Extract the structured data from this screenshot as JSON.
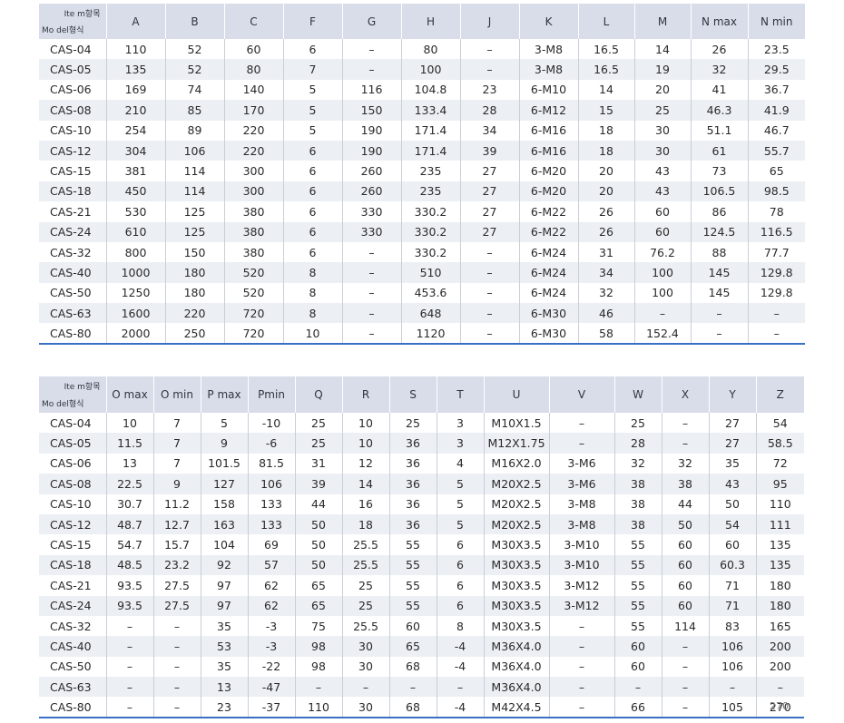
{
  "table1": {
    "corner_item": "Ite m항목",
    "corner_model": "Mo del형식",
    "columns": [
      "A",
      "B",
      "C",
      "F",
      "G",
      "H",
      "J",
      "K",
      "L",
      "M",
      "N max",
      "N min"
    ],
    "rows": [
      [
        "CAS-04",
        "110",
        "52",
        "60",
        "6",
        "–",
        "80",
        "–",
        "3-M8",
        "16.5",
        "14",
        "26",
        "23.5"
      ],
      [
        "CAS-05",
        "135",
        "52",
        "80",
        "7",
        "–",
        "100",
        "–",
        "3-M8",
        "16.5",
        "19",
        "32",
        "29.5"
      ],
      [
        "CAS-06",
        "169",
        "74",
        "140",
        "5",
        "116",
        "104.8",
        "23",
        "6-M10",
        "14",
        "20",
        "41",
        "36.7"
      ],
      [
        "CAS-08",
        "210",
        "85",
        "170",
        "5",
        "150",
        "133.4",
        "28",
        "6-M12",
        "15",
        "25",
        "46.3",
        "41.9"
      ],
      [
        "CAS-10",
        "254",
        "89",
        "220",
        "5",
        "190",
        "171.4",
        "34",
        "6-M16",
        "18",
        "30",
        "51.1",
        "46.7"
      ],
      [
        "CAS-12",
        "304",
        "106",
        "220",
        "6",
        "190",
        "171.4",
        "39",
        "6-M16",
        "18",
        "30",
        "61",
        "55.7"
      ],
      [
        "CAS-15",
        "381",
        "114",
        "300",
        "6",
        "260",
        "235",
        "27",
        "6-M20",
        "20",
        "43",
        "73",
        "65"
      ],
      [
        "CAS-18",
        "450",
        "114",
        "300",
        "6",
        "260",
        "235",
        "27",
        "6-M20",
        "20",
        "43",
        "106.5",
        "98.5"
      ],
      [
        "CAS-21",
        "530",
        "125",
        "380",
        "6",
        "330",
        "330.2",
        "27",
        "6-M22",
        "26",
        "60",
        "86",
        "78"
      ],
      [
        "CAS-24",
        "610",
        "125",
        "380",
        "6",
        "330",
        "330.2",
        "27",
        "6-M22",
        "26",
        "60",
        "124.5",
        "116.5"
      ],
      [
        "CAS-32",
        "800",
        "150",
        "380",
        "6",
        "–",
        "330.2",
        "–",
        "6-M24",
        "31",
        "76.2",
        "88",
        "77.7"
      ],
      [
        "CAS-40",
        "1000",
        "180",
        "520",
        "8",
        "–",
        "510",
        "–",
        "6-M24",
        "34",
        "100",
        "145",
        "129.8"
      ],
      [
        "CAS-50",
        "1250",
        "180",
        "520",
        "8",
        "–",
        "453.6",
        "–",
        "6-M24",
        "32",
        "100",
        "145",
        "129.8"
      ],
      [
        "CAS-63",
        "1600",
        "220",
        "720",
        "8",
        "–",
        "648",
        "–",
        "6-M30",
        "46",
        "–",
        "–",
        "–"
      ],
      [
        "CAS-80",
        "2000",
        "250",
        "720",
        "10",
        "–",
        "1120",
        "–",
        "6-M30",
        "58",
        "152.4",
        "–",
        "–"
      ]
    ]
  },
  "table2": {
    "corner_item": "Ite m항목",
    "corner_model": "Mo del형식",
    "columns": [
      "O max",
      "O min",
      "P max",
      "Pmin",
      "Q",
      "R",
      "S",
      "T",
      "U",
      "V",
      "W",
      "X",
      "Y",
      "Z"
    ],
    "rows": [
      [
        "CAS-04",
        "10",
        "7",
        "5",
        "-10",
        "25",
        "10",
        "25",
        "3",
        "M10X1.5",
        "–",
        "25",
        "–",
        "27",
        "54"
      ],
      [
        "CAS-05",
        "11.5",
        "7",
        "9",
        "-6",
        "25",
        "10",
        "36",
        "3",
        "M12X1.75",
        "–",
        "28",
        "–",
        "27",
        "58.5"
      ],
      [
        "CAS-06",
        "13",
        "7",
        "101.5",
        "81.5",
        "31",
        "12",
        "36",
        "4",
        "M16X2.0",
        "3-M6",
        "32",
        "32",
        "35",
        "72"
      ],
      [
        "CAS-08",
        "22.5",
        "9",
        "127",
        "106",
        "39",
        "14",
        "36",
        "5",
        "M20X2.5",
        "3-M6",
        "38",
        "38",
        "43",
        "95"
      ],
      [
        "CAS-10",
        "30.7",
        "11.2",
        "158",
        "133",
        "44",
        "16",
        "36",
        "5",
        "M20X2.5",
        "3-M8",
        "38",
        "44",
        "50",
        "110"
      ],
      [
        "CAS-12",
        "48.7",
        "12.7",
        "163",
        "133",
        "50",
        "18",
        "36",
        "5",
        "M20X2.5",
        "3-M8",
        "38",
        "50",
        "54",
        "111"
      ],
      [
        "CAS-15",
        "54.7",
        "15.7",
        "104",
        "69",
        "50",
        "25.5",
        "55",
        "6",
        "M30X3.5",
        "3-M10",
        "55",
        "60",
        "60",
        "135"
      ],
      [
        "CAS-18",
        "48.5",
        "23.2",
        "92",
        "57",
        "50",
        "25.5",
        "55",
        "6",
        "M30X3.5",
        "3-M10",
        "55",
        "60",
        "60.3",
        "135"
      ],
      [
        "CAS-21",
        "93.5",
        "27.5",
        "97",
        "62",
        "65",
        "25",
        "55",
        "6",
        "M30X3.5",
        "3-M12",
        "55",
        "60",
        "71",
        "180"
      ],
      [
        "CAS-24",
        "93.5",
        "27.5",
        "97",
        "62",
        "65",
        "25",
        "55",
        "6",
        "M30X3.5",
        "3-M12",
        "55",
        "60",
        "71",
        "180"
      ],
      [
        "CAS-32",
        "–",
        "–",
        "35",
        "-3",
        "75",
        "25.5",
        "60",
        "8",
        "M30X3.5",
        "–",
        "55",
        "114",
        "83",
        "165"
      ],
      [
        "CAS-40",
        "–",
        "–",
        "53",
        "-3",
        "98",
        "30",
        "65",
        "-4",
        "M36X4.0",
        "–",
        "60",
        "–",
        "106",
        "200"
      ],
      [
        "CAS-50",
        "–",
        "–",
        "35",
        "-22",
        "98",
        "30",
        "68",
        "-4",
        "M36X4.0",
        "–",
        "60",
        "–",
        "106",
        "200"
      ],
      [
        "CAS-63",
        "–",
        "–",
        "13",
        "-47",
        "–",
        "–",
        "–",
        "–",
        "M36X4.0",
        "–",
        "–",
        "–",
        "–",
        "–"
      ],
      [
        "CAS-80",
        "–",
        "–",
        "23",
        "-37",
        "110",
        "30",
        "68",
        "-4",
        "M42X4.5",
        "–",
        "66",
        "–",
        "105",
        "270"
      ]
    ]
  },
  "page_number": "270"
}
